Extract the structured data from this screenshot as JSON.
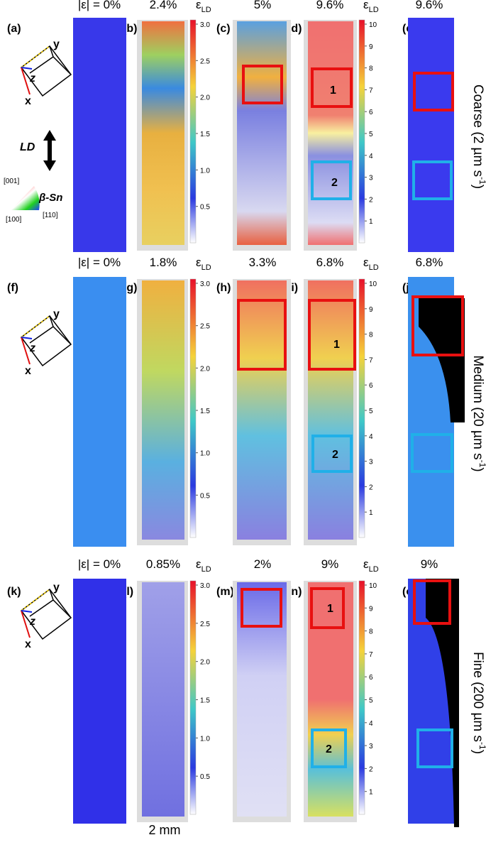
{
  "rows": [
    {
      "row_label": {
        "main": "Coarse (2 µm s",
        "sup": "-1",
        "end": ")"
      },
      "panels": [
        {
          "letter": "(a)",
          "strain": "|ε| = 0%"
        },
        {
          "letter": "(b)",
          "strain": "2.4%"
        },
        {
          "letter": "(c)",
          "strain": "5%"
        },
        {
          "letter": "(d)",
          "strain": "9.6%"
        },
        {
          "letter": "(e)",
          "strain": "9.6%"
        }
      ],
      "colorbar_left": {
        "symbol": "ε",
        "sub": "LD",
        "ticks": [
          "3.0",
          "2.5",
          "2.0",
          "1.5",
          "1.0",
          "0.5"
        ]
      },
      "colorbar_right": {
        "symbol": "ε",
        "sub": "LD",
        "ticks": [
          "10",
          "9",
          "8",
          "7",
          "6",
          "5",
          "4",
          "3",
          "2",
          "1"
        ]
      },
      "box_labels": [
        "1",
        "2"
      ],
      "cube": [
        "x",
        "y",
        "z"
      ],
      "ld": "LD",
      "phase": "β-Sn",
      "ipf": [
        "[001]",
        "[100]",
        "[110]"
      ]
    },
    {
      "row_label": {
        "main": "Medium (20 µm s",
        "sup": "-1",
        "end": ")"
      },
      "panels": [
        {
          "letter": "(f)",
          "strain": "|ε| = 0%"
        },
        {
          "letter": "(g)",
          "strain": "1.8%"
        },
        {
          "letter": "(h)",
          "strain": "3.3%"
        },
        {
          "letter": "(i)",
          "strain": "6.8%"
        },
        {
          "letter": "(j)",
          "strain": "6.8%"
        }
      ],
      "colorbar_left": {
        "symbol": "ε",
        "sub": "LD",
        "ticks": [
          "3.0",
          "2.5",
          "2.0",
          "1.5",
          "1.0",
          "0.5"
        ]
      },
      "colorbar_right": {
        "symbol": "ε",
        "sub": "LD",
        "ticks": [
          "10",
          "9",
          "8",
          "7",
          "6",
          "5",
          "4",
          "3",
          "2",
          "1"
        ]
      },
      "box_labels": [
        "1",
        "2"
      ],
      "cube": [
        "x",
        "y",
        "z"
      ]
    },
    {
      "row_label": {
        "main": "Fine  (200 µm s",
        "sup": "-1",
        "end": ")"
      },
      "panels": [
        {
          "letter": "(k)",
          "strain": "|ε| = 0%"
        },
        {
          "letter": "(l)",
          "strain": "0.85%"
        },
        {
          "letter": "(m)",
          "strain": "2%"
        },
        {
          "letter": "(n)",
          "strain": "9%"
        },
        {
          "letter": "(o)",
          "strain": "9%"
        }
      ],
      "colorbar_left": {
        "symbol": "ε",
        "sub": "LD",
        "ticks": [
          "3.0",
          "2.5",
          "2.0",
          "1.5",
          "1.0",
          "0.5"
        ]
      },
      "colorbar_right": {
        "symbol": "ε",
        "sub": "LD",
        "ticks": [
          "10",
          "9",
          "8",
          "7",
          "6",
          "5",
          "4",
          "3",
          "2",
          "1"
        ]
      },
      "box_labels": [
        "1",
        "2"
      ],
      "cube": [
        "x",
        "y",
        "z"
      ]
    }
  ],
  "scale_bar": "2 mm"
}
